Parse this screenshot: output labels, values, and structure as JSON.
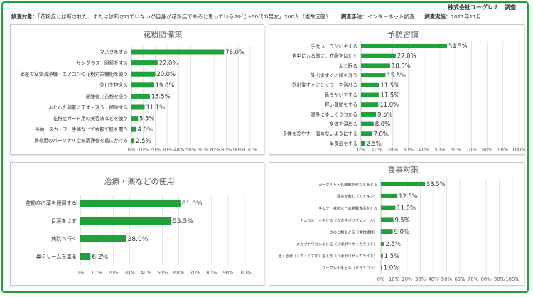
{
  "header": {
    "company": "株式会社ユーグレナ　調査",
    "target_label": "調査対象：",
    "target_text": "「花粉症と診断された、または診断されていないが自身が花粉症であると思っている20代〜60代の男女」200人（複数回答）",
    "method_label": "調査手法：",
    "method_text": "インターネット調査",
    "date_label": "調査実施：",
    "date_text": "2021年11月"
  },
  "colors": {
    "bar": "#1fa23a",
    "frame": "#1fa23a",
    "grid": "#d9d9d9"
  },
  "chart_data": [
    {
      "type": "bar",
      "orientation": "horizontal",
      "title": "花粉防備策",
      "categories": [
        "マスクをする",
        "サングラス・眼鏡をする",
        "部屋で空気清浄機・エアコンの花粉対策機能を使う",
        "外出を控える",
        "掃除機で花粉を吸う",
        "ふとんを頻繁に干す・洗う・掃除する",
        "花粉症ガード用の美容液などを使う",
        "長袖、スカーフ、手袋などで衣服で肌を覆う",
        "携帯用のパーソナル空気清浄機を首にかける"
      ],
      "values": [
        78.0,
        22.0,
        20.0,
        19.0,
        15.5,
        11.1,
        5.5,
        4.0,
        2.5
      ],
      "value_labels": [
        "78.0%",
        "22.0%",
        "20.0%",
        "19.0%",
        "15.5%",
        "11.1%",
        "5.5%",
        "4.0%",
        "2.5%"
      ],
      "xlim": [
        0,
        100
      ],
      "ticks": [
        "0%",
        "10%",
        "20%",
        "30%",
        "40%",
        "50%",
        "60%",
        "70%",
        "80%",
        "90%",
        "100%"
      ],
      "grid": true
    },
    {
      "type": "bar",
      "orientation": "horizontal",
      "title": "予防習慣",
      "categories": [
        "手洗い、うがいをする",
        "自宅に入る前に、衣服をはたく",
        "よく眠る",
        "外出後すぐに顔を洗う",
        "外出後すぐにシャワーを浴びる",
        "鼻うがいをする",
        "軽い運動をする",
        "湯舟にゆっくりつかる",
        "身体を温める",
        "身体を冷やす・温めないようにする",
        "半身浴をする"
      ],
      "values": [
        54.5,
        22.0,
        18.5,
        15.5,
        11.5,
        11.5,
        11.0,
        9.5,
        8.0,
        7.0,
        2.5
      ],
      "value_labels": [
        "54.5%",
        "22.0%",
        "18.5%",
        "15.5%",
        "11.5%",
        "11.5%",
        "11.0%",
        "9.5%",
        "8.0%",
        "7.0%",
        "2.5%"
      ],
      "xlim": [
        0,
        100
      ],
      "ticks": [
        "0%",
        "10%",
        "20%",
        "30%",
        "40%",
        "50%",
        "60%",
        "70%",
        "80%",
        "90%",
        "100%"
      ],
      "grid": true
    },
    {
      "type": "bar",
      "orientation": "horizontal",
      "title": "治療・薬などの使用",
      "categories": [
        "花粉症の薬を服用する",
        "目薬をさす",
        "病院へ行く",
        "鼻クリームを塗る"
      ],
      "values": [
        61.0,
        55.5,
        28.0,
        6.2
      ],
      "value_labels": [
        "61.0%",
        "55.5%",
        "28.0%",
        "6.2%"
      ],
      "xlim": [
        0,
        100
      ],
      "ticks": [
        "0%",
        "10%",
        "20%",
        "30%",
        "40%",
        "50%",
        "60%",
        "70%",
        "80%",
        "90%",
        "100%"
      ],
      "grid": true
    },
    {
      "type": "bar",
      "orientation": "horizontal",
      "title": "食事対策",
      "categories": [
        "ヨーグルト・乳酸菌飲料などをとる",
        "緑茶を飲む（カテキン）",
        "キムチ、味噌などの発酵食品をとる",
        "チョコレートをとる（カカオポリフェノール）",
        "きのこ類をとる（食物繊維）",
        "メカブやワカメをとる（リボポリサッカライド）",
        "葛・葛湯（くず・くずゆ）をとる（リボポリサッカライド）",
        "ユーグレナをとる（パラミロン）"
      ],
      "values": [
        33.5,
        12.5,
        11.0,
        9.5,
        9.0,
        2.5,
        1.5,
        1.0
      ],
      "value_labels": [
        "33.5%",
        "12.5%",
        "11.0%",
        "9.5%",
        "9.0%",
        "2.5%",
        "1.5%",
        "1.0%"
      ],
      "xlim": [
        0,
        100
      ],
      "ticks": [
        "0%",
        "10%",
        "20%",
        "30%",
        "40%",
        "50%",
        "60%",
        "70%",
        "80%",
        "90%",
        "100%"
      ],
      "grid": true
    }
  ]
}
